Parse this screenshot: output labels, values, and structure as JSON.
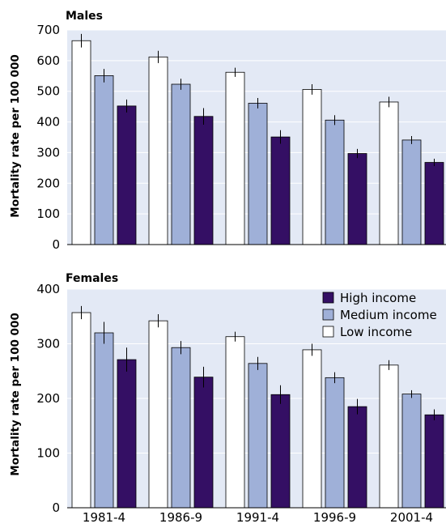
{
  "chart_data": [
    {
      "type": "bar",
      "title": "Males",
      "ylabel": "Mortality rate per 100 000",
      "ylim": [
        0,
        700
      ],
      "yticks": [
        0,
        100,
        200,
        300,
        400,
        500,
        600,
        700
      ],
      "categories": [
        "1981-4",
        "1986-9",
        "1991-4",
        "1996-9",
        "2001-4"
      ],
      "show_xtick_labels": false,
      "series": [
        {
          "name": "Low income",
          "color": "#ffffff",
          "values": [
            665,
            612,
            562,
            506,
            465
          ],
          "err": [
            22,
            20,
            15,
            17,
            17
          ]
        },
        {
          "name": "Medium income",
          "color": "#9fb0d8",
          "values": [
            551,
            523,
            461,
            406,
            341
          ],
          "err": [
            22,
            18,
            17,
            16,
            13
          ]
        },
        {
          "name": "High income",
          "color": "#340f64",
          "values": [
            452,
            418,
            351,
            297,
            268
          ],
          "err": [
            21,
            27,
            22,
            15,
            12
          ]
        }
      ],
      "grid": true,
      "background": "#e3e9f5"
    },
    {
      "type": "bar",
      "title": "Females",
      "ylabel": "Mortality rate per 100 000",
      "ylim": [
        0,
        400
      ],
      "yticks": [
        0,
        100,
        200,
        300,
        400
      ],
      "categories": [
        "1981-4",
        "1986-9",
        "1991-4",
        "1996-9",
        "2001-4"
      ],
      "show_xtick_labels": true,
      "series": [
        {
          "name": "Low income",
          "color": "#ffffff",
          "values": [
            357,
            342,
            313,
            289,
            261
          ],
          "err": [
            12,
            12,
            9,
            11,
            9
          ]
        },
        {
          "name": "Medium income",
          "color": "#9fb0d8",
          "values": [
            320,
            293,
            264,
            238,
            208
          ],
          "err": [
            20,
            12,
            12,
            10,
            7
          ]
        },
        {
          "name": "High income",
          "color": "#340f64",
          "values": [
            271,
            239,
            207,
            185,
            170
          ],
          "err": [
            22,
            19,
            17,
            14,
            10
          ]
        }
      ],
      "legend": {
        "placement": "top-right",
        "entries": [
          "High income",
          "Medium income",
          "Low income"
        ]
      },
      "grid": true,
      "background": "#e3e9f5"
    }
  ]
}
